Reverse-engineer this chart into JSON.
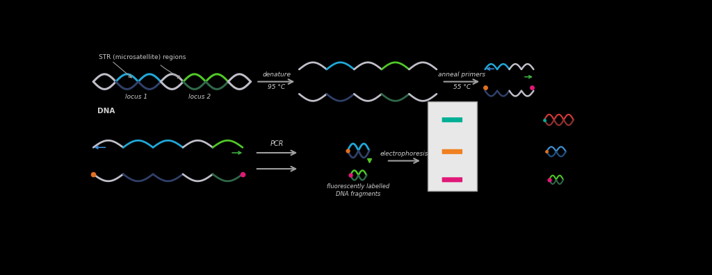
{
  "bg_color": "#000000",
  "dna_gray": "#c0bec8",
  "dna_blue": "#20a8d8",
  "dna_blue_dark": "#304068",
  "dna_green": "#50c828",
  "dna_green_dark": "#306848",
  "teal_bar": "#00b096",
  "orange_bar": "#f08020",
  "pink_bar": "#e01878",
  "gel_bg": "#e8e8e8",
  "gel_border": "#909090",
  "arrow_color": "#a0a0a0",
  "label_color": "#d0d0d0",
  "label_light": "#c8c8c8",
  "str_regions": "STR (microsatellite) regions",
  "locus1": "locus 1",
  "locus2": "locus 2",
  "dna_label": "DNA",
  "denature": "denature",
  "denature_temp": "95 °C",
  "anneal": "anneal primers",
  "anneal_temp": "55 °C",
  "pcr": "PCR",
  "electrophoresis": "electrophoresis",
  "fluorescent": "fluorescently labelled\nDNA fragments"
}
